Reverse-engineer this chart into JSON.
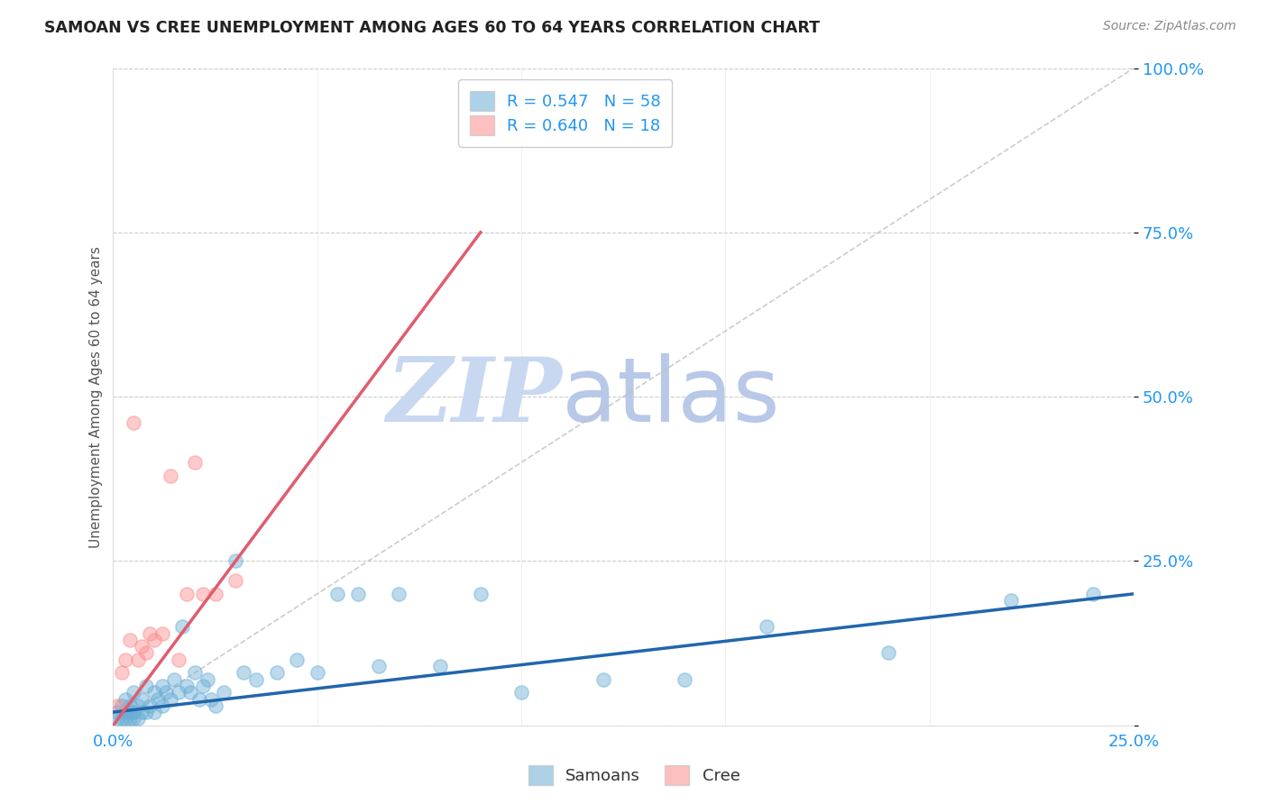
{
  "title": "SAMOAN VS CREE UNEMPLOYMENT AMONG AGES 60 TO 64 YEARS CORRELATION CHART",
  "source": "Source: ZipAtlas.com",
  "ylabel": "Unemployment Among Ages 60 to 64 years",
  "xlabel": "",
  "xlim": [
    0.0,
    0.25
  ],
  "ylim": [
    0.0,
    1.0
  ],
  "xticks": [
    0.0,
    0.05,
    0.1,
    0.15,
    0.2,
    0.25
  ],
  "xticklabels": [
    "0.0%",
    "",
    "",
    "",
    "",
    "25.0%"
  ],
  "yticks": [
    0.0,
    0.25,
    0.5,
    0.75,
    1.0
  ],
  "yticklabels": [
    "",
    "25.0%",
    "50.0%",
    "75.0%",
    "100.0%"
  ],
  "samoans_R": 0.547,
  "samoans_N": 58,
  "cree_R": 0.64,
  "cree_N": 18,
  "samoan_color": "#6baed6",
  "cree_color": "#fc8d8d",
  "samoan_line_color": "#2166ac",
  "cree_line_color": "#e05c6e",
  "watermark_zip": "ZIP",
  "watermark_atlas": "atlas",
  "watermark_color_zip": "#c8d8f0",
  "watermark_color_atlas": "#b8c8e8",
  "samoans_x": [
    0.001,
    0.001,
    0.002,
    0.002,
    0.003,
    0.003,
    0.003,
    0.004,
    0.004,
    0.004,
    0.005,
    0.005,
    0.005,
    0.006,
    0.006,
    0.007,
    0.007,
    0.008,
    0.008,
    0.009,
    0.01,
    0.01,
    0.011,
    0.012,
    0.012,
    0.013,
    0.014,
    0.015,
    0.016,
    0.017,
    0.018,
    0.019,
    0.02,
    0.021,
    0.022,
    0.023,
    0.024,
    0.025,
    0.027,
    0.03,
    0.032,
    0.035,
    0.04,
    0.045,
    0.05,
    0.055,
    0.06,
    0.065,
    0.07,
    0.08,
    0.09,
    0.1,
    0.12,
    0.14,
    0.16,
    0.19,
    0.22,
    0.24
  ],
  "samoans_y": [
    0.01,
    0.02,
    0.01,
    0.03,
    0.01,
    0.02,
    0.04,
    0.01,
    0.02,
    0.03,
    0.01,
    0.02,
    0.05,
    0.01,
    0.03,
    0.02,
    0.04,
    0.02,
    0.06,
    0.03,
    0.02,
    0.05,
    0.04,
    0.03,
    0.06,
    0.05,
    0.04,
    0.07,
    0.05,
    0.15,
    0.06,
    0.05,
    0.08,
    0.04,
    0.06,
    0.07,
    0.04,
    0.03,
    0.05,
    0.25,
    0.08,
    0.07,
    0.08,
    0.1,
    0.08,
    0.2,
    0.2,
    0.09,
    0.2,
    0.09,
    0.2,
    0.05,
    0.07,
    0.07,
    0.15,
    0.11,
    0.19,
    0.2
  ],
  "cree_x": [
    0.001,
    0.002,
    0.003,
    0.004,
    0.005,
    0.006,
    0.007,
    0.008,
    0.009,
    0.01,
    0.012,
    0.014,
    0.016,
    0.018,
    0.02,
    0.022,
    0.025,
    0.03
  ],
  "cree_y": [
    0.03,
    0.08,
    0.1,
    0.13,
    0.46,
    0.1,
    0.12,
    0.11,
    0.14,
    0.13,
    0.14,
    0.38,
    0.1,
    0.2,
    0.4,
    0.2,
    0.2,
    0.22
  ],
  "samoan_trendline_x": [
    0.0,
    0.25
  ],
  "samoan_trendline_y": [
    0.02,
    0.2
  ],
  "cree_trendline_x": [
    0.0,
    0.09
  ],
  "cree_trendline_y": [
    0.0,
    0.75
  ]
}
